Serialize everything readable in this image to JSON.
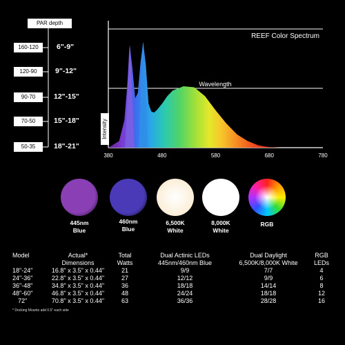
{
  "par_panel": {
    "header": "PAR  depth",
    "rows": [
      {
        "par": "160-120",
        "depth": "6\"-9\""
      },
      {
        "par": "120-90",
        "depth": "9\"-12\""
      },
      {
        "par": "90-70",
        "depth": "12\"-15\""
      },
      {
        "par": "70-50",
        "depth": "15\"-18\""
      },
      {
        "par": "50-35",
        "depth": "18\"-21\""
      }
    ]
  },
  "chart_data": {
    "type": "area",
    "title": "REEF Color Spectrum",
    "xlabel": "Wavelength",
    "ylabel": "Intensity",
    "xlim": [
      380,
      780
    ],
    "ticks": [
      "380",
      "480",
      "580",
      "680",
      "780"
    ],
    "x": [
      380,
      400,
      410,
      415,
      420,
      425,
      430,
      435,
      440,
      445,
      450,
      455,
      460,
      465,
      470,
      480,
      490,
      500,
      520,
      540,
      560,
      580,
      600,
      620,
      640,
      660,
      680,
      700
    ],
    "y": [
      0,
      0.06,
      0.25,
      0.55,
      0.93,
      0.72,
      0.45,
      0.5,
      0.78,
      0.96,
      0.75,
      0.4,
      0.33,
      0.32,
      0.34,
      0.4,
      0.47,
      0.52,
      0.56,
      0.55,
      0.47,
      0.34,
      0.22,
      0.12,
      0.06,
      0.02,
      0.005,
      0
    ]
  },
  "swatches": [
    {
      "label1": "445nm",
      "label2": "Blue",
      "color": "#8a3fb4"
    },
    {
      "label1": "460nm",
      "label2": "Blue",
      "color": "#4a3ab8"
    },
    {
      "label1": "6,500K",
      "label2": "White",
      "color": "#fbeed8"
    },
    {
      "label1": "8,000K",
      "label2": "White",
      "color": "#ffffff"
    },
    {
      "label1": "RGB",
      "label2": "",
      "color": "rgb"
    }
  ],
  "table": {
    "headers": {
      "model": [
        "",
        "Model"
      ],
      "dims": [
        "Actual*",
        "Dimensions"
      ],
      "watts": [
        "Total",
        "Watts"
      ],
      "actinic": [
        "Dual Actinic LEDs",
        "445nm/460nm Blue"
      ],
      "daylight": [
        "Dual Daylight",
        "6,500K/8,000K White"
      ],
      "rgb": [
        "RGB",
        "LEDs"
      ]
    },
    "rows": [
      {
        "model": "18\"-24\"",
        "dims": "16.8\" x 3.5\" x 0.44\"",
        "watts": "21",
        "actinic": "9/9",
        "daylight": "7/7",
        "rgb": "4"
      },
      {
        "model": "24\"-36\"",
        "dims": "22.8\" x 3.5\" x 0.44\"",
        "watts": "27",
        "actinic": "12/12",
        "daylight": "9/9",
        "rgb": "6"
      },
      {
        "model": "36\"-48\"",
        "dims": "34.8\" x 3.5\" x 0.44\"",
        "watts": "36",
        "actinic": "18/18",
        "daylight": "14/14",
        "rgb": "8"
      },
      {
        "model": "48\"-60\"",
        "dims": "46.8\" x 3.5\" x 0.44\"",
        "watts": "48",
        "actinic": "24/24",
        "daylight": "18/18",
        "rgb": "12"
      },
      {
        "model": "72\"",
        "dims": "70.8\" x 3.5\" x 0.44\"",
        "watts": "63",
        "actinic": "36/36",
        "daylight": "28/28",
        "rgb": "16"
      }
    ],
    "note": "* Docking Mounts add 0.5\" each side"
  }
}
